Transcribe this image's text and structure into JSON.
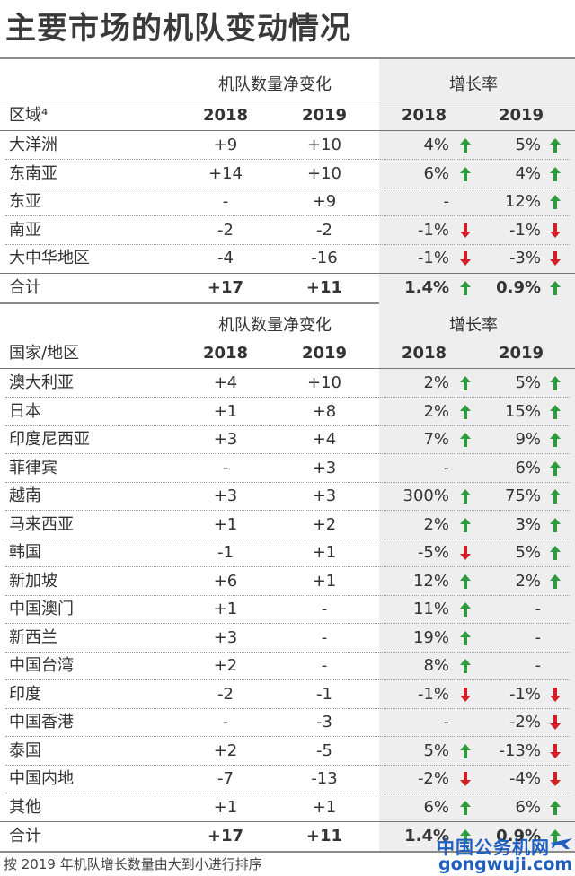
{
  "title": "主要市场的机队变动情况",
  "colors": {
    "up": "#2e9a3e",
    "down": "#d21f26",
    "rule": "#8a8a8a",
    "shade": "#eeeeee",
    "watermark": "#1f5fbf"
  },
  "group_headers": {
    "net_change": "机队数量净变化",
    "growth": "增长率"
  },
  "years": {
    "y1": "2018",
    "y2": "2019",
    "y3": "2018",
    "y4": "2019"
  },
  "regions": {
    "column_label": "区域⁴",
    "rows": [
      {
        "name": "大洋洲",
        "c2018": "+9",
        "c2019": "+10",
        "g2018": "4%",
        "d2018": "up",
        "g2019": "5%",
        "d2019": "up"
      },
      {
        "name": "东南亚",
        "c2018": "+14",
        "c2019": "+10",
        "g2018": "6%",
        "d2018": "up",
        "g2019": "4%",
        "d2019": "up"
      },
      {
        "name": "东亚",
        "c2018": "-",
        "c2019": "+9",
        "g2018": "-",
        "d2018": "",
        "g2019": "12%",
        "d2019": "up"
      },
      {
        "name": "南亚",
        "c2018": "-2",
        "c2019": "-2",
        "g2018": "-1%",
        "d2018": "down",
        "g2019": "-1%",
        "d2019": "down"
      },
      {
        "name": "大中华地区",
        "c2018": "-4",
        "c2019": "-16",
        "g2018": "-1%",
        "d2018": "down",
        "g2019": "-3%",
        "d2019": "down"
      }
    ],
    "total": {
      "name": "合计",
      "c2018": "+17",
      "c2019": "+11",
      "g2018": "1.4%",
      "d2018": "up",
      "g2019": "0.9%",
      "d2019": "up"
    }
  },
  "countries": {
    "column_label": "国家/地区",
    "rows": [
      {
        "name": "澳大利亚",
        "c2018": "+4",
        "c2019": "+10",
        "g2018": "2%",
        "d2018": "up",
        "g2019": "5%",
        "d2019": "up"
      },
      {
        "name": "日本",
        "c2018": "+1",
        "c2019": "+8",
        "g2018": "2%",
        "d2018": "up",
        "g2019": "15%",
        "d2019": "up"
      },
      {
        "name": "印度尼西亚",
        "c2018": "+3",
        "c2019": "+4",
        "g2018": "7%",
        "d2018": "up",
        "g2019": "9%",
        "d2019": "up"
      },
      {
        "name": "菲律宾",
        "c2018": "-",
        "c2019": "+3",
        "g2018": "-",
        "d2018": "",
        "g2019": "6%",
        "d2019": "up"
      },
      {
        "name": "越南",
        "c2018": "+3",
        "c2019": "+3",
        "g2018": "300%",
        "d2018": "up",
        "g2019": "75%",
        "d2019": "up"
      },
      {
        "name": "马来西亚",
        "c2018": "+1",
        "c2019": "+2",
        "g2018": "2%",
        "d2018": "up",
        "g2019": "3%",
        "d2019": "up"
      },
      {
        "name": "韩国",
        "c2018": "-1",
        "c2019": "+1",
        "g2018": "-5%",
        "d2018": "down",
        "g2019": "5%",
        "d2019": "up"
      },
      {
        "name": "新加坡",
        "c2018": "+6",
        "c2019": "+1",
        "g2018": "12%",
        "d2018": "up",
        "g2019": "2%",
        "d2019": "up"
      },
      {
        "name": "中国澳门",
        "c2018": "+1",
        "c2019": "-",
        "g2018": "11%",
        "d2018": "up",
        "g2019": "-",
        "d2019": ""
      },
      {
        "name": "新西兰",
        "c2018": "+3",
        "c2019": "-",
        "g2018": "19%",
        "d2018": "up",
        "g2019": "-",
        "d2019": ""
      },
      {
        "name": "中国台湾",
        "c2018": "+2",
        "c2019": "-",
        "g2018": "8%",
        "d2018": "up",
        "g2019": "-",
        "d2019": ""
      },
      {
        "name": "印度",
        "c2018": "-2",
        "c2019": "-1",
        "g2018": "-1%",
        "d2018": "down",
        "g2019": "-1%",
        "d2019": "down"
      },
      {
        "name": "中国香港",
        "c2018": "-",
        "c2019": "-3",
        "g2018": "-",
        "d2018": "",
        "g2019": "-2%",
        "d2019": "down"
      },
      {
        "name": "泰国",
        "c2018": "+2",
        "c2019": "-5",
        "g2018": "5%",
        "d2018": "up",
        "g2019": "-13%",
        "d2019": "down"
      },
      {
        "name": "中国内地",
        "c2018": "-7",
        "c2019": "-13",
        "g2018": "-2%",
        "d2018": "down",
        "g2019": "-4%",
        "d2019": "down"
      },
      {
        "name": "其他",
        "c2018": "+1",
        "c2019": "+1",
        "g2018": "6%",
        "d2018": "up",
        "g2019": "6%",
        "d2019": "up"
      }
    ],
    "total": {
      "name": "合计",
      "c2018": "+17",
      "c2019": "+11",
      "g2018": "1.4%",
      "d2018": "up",
      "g2019": "0.9%",
      "d2019": "up"
    }
  },
  "footnote": "按 2019 年机队增长数量由大到小进行排序",
  "watermark": {
    "cn": "中国公务机网",
    "en": "gongwuji.com"
  }
}
